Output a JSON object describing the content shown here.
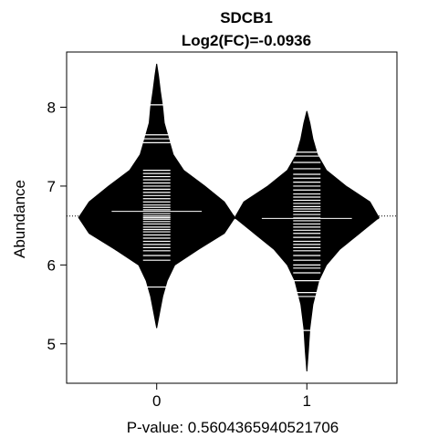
{
  "chart_data": {
    "type": "beanplot",
    "title": "SDCB1",
    "subtitle": "Log2(FC)=-0.0936",
    "ylabel": "Abundance",
    "xlabel": "P-value: 0.5604365940521706",
    "categories": [
      "0",
      "1"
    ],
    "xlim": [
      -0.6,
      1.6
    ],
    "ylim": [
      4.5,
      8.7
    ],
    "yticks": [
      5,
      6,
      7,
      8
    ],
    "overall_mean": 6.62,
    "grid": false,
    "legend": "none",
    "series": [
      {
        "group": "0",
        "mean": 6.68,
        "min": 5.2,
        "max": 8.55,
        "density": [
          [
            5.2,
            0.0
          ],
          [
            5.4,
            0.02
          ],
          [
            5.6,
            0.04
          ],
          [
            5.8,
            0.07
          ],
          [
            6.0,
            0.12
          ],
          [
            6.2,
            0.28
          ],
          [
            6.4,
            0.45
          ],
          [
            6.6,
            0.52
          ],
          [
            6.8,
            0.45
          ],
          [
            7.0,
            0.32
          ],
          [
            7.2,
            0.18
          ],
          [
            7.4,
            0.11
          ],
          [
            7.6,
            0.08
          ],
          [
            7.8,
            0.05
          ],
          [
            8.0,
            0.04
          ],
          [
            8.2,
            0.025
          ],
          [
            8.4,
            0.012
          ],
          [
            8.55,
            0.0
          ]
        ],
        "points": [
          5.72,
          6.06,
          6.12,
          6.18,
          6.22,
          6.26,
          6.3,
          6.34,
          6.38,
          6.42,
          6.45,
          6.48,
          6.52,
          6.55,
          6.58,
          6.6,
          6.62,
          6.65,
          6.68,
          6.7,
          6.73,
          6.76,
          6.8,
          6.84,
          6.88,
          6.92,
          6.96,
          7.0,
          7.04,
          7.08,
          7.12,
          7.16,
          7.2,
          7.55,
          7.6,
          7.65,
          8.03
        ]
      },
      {
        "group": "1",
        "mean": 6.59,
        "min": 4.65,
        "max": 7.95,
        "density": [
          [
            4.65,
            0.0
          ],
          [
            4.9,
            0.01
          ],
          [
            5.2,
            0.02
          ],
          [
            5.5,
            0.04
          ],
          [
            5.8,
            0.08
          ],
          [
            6.0,
            0.13
          ],
          [
            6.2,
            0.22
          ],
          [
            6.4,
            0.35
          ],
          [
            6.6,
            0.48
          ],
          [
            6.8,
            0.42
          ],
          [
            7.0,
            0.26
          ],
          [
            7.2,
            0.13
          ],
          [
            7.4,
            0.07
          ],
          [
            7.6,
            0.04
          ],
          [
            7.8,
            0.02
          ],
          [
            7.95,
            0.0
          ]
        ],
        "points": [
          5.17,
          5.6,
          5.65,
          5.8,
          5.9,
          5.96,
          6.0,
          6.06,
          6.12,
          6.18,
          6.22,
          6.26,
          6.3,
          6.35,
          6.4,
          6.44,
          6.48,
          6.52,
          6.56,
          6.6,
          6.64,
          6.68,
          6.71,
          6.74,
          6.78,
          6.82,
          6.86,
          6.9,
          6.95,
          7.0,
          7.05,
          7.1,
          7.15,
          7.22,
          7.3,
          7.38,
          7.43
        ]
      }
    ]
  }
}
